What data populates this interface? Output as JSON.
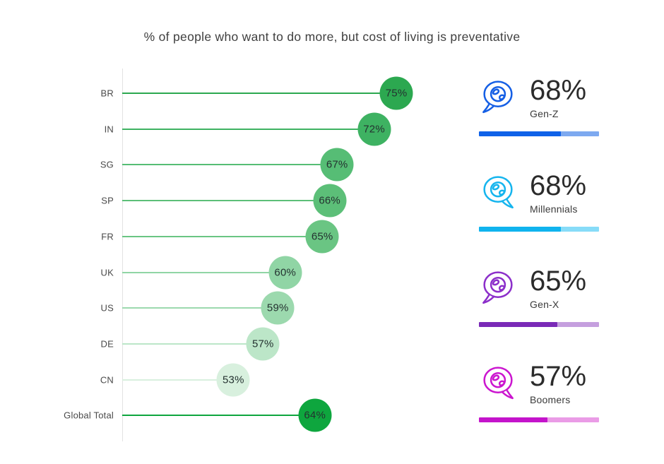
{
  "title": "% of people who want to do more, but cost of living is preventative",
  "chart_data": [
    {
      "type": "lollipop",
      "orientation": "horizontal",
      "categories": [
        "BR",
        "IN",
        "SG",
        "SP",
        "FR",
        "UK",
        "US",
        "DE",
        "CN",
        "Global Total"
      ],
      "values": [
        75,
        72,
        67,
        66,
        65,
        60,
        59,
        57,
        53,
        64
      ],
      "labels": [
        "75%",
        "72%",
        "67%",
        "66%",
        "65%",
        "60%",
        "59%",
        "57%",
        "53%",
        "64%"
      ],
      "colors": [
        "#2ca850",
        "#3eb262",
        "#56bd75",
        "#5cbf78",
        "#6ac583",
        "#90d5a5",
        "#9cd9ae",
        "#bce6c8",
        "#d8f0de",
        "#0ea63e"
      ],
      "value_text_color": "#243230",
      "label_color": "#4a4a4a",
      "axis_color": "#e2e2e2",
      "xlim": [
        38,
        79
      ],
      "grid": false
    },
    {
      "type": "bar",
      "orientation": "horizontal",
      "categories": [
        "Gen-Z",
        "Millennials",
        "Gen-X",
        "Boomers"
      ],
      "values": [
        68,
        68,
        65,
        57
      ],
      "labels": [
        "68%",
        "68%",
        "65%",
        "57%"
      ],
      "bar_colors": [
        "#0f62e8",
        "#10b3ee",
        "#7a2ab7",
        "#c414cb"
      ],
      "track_colors": [
        "#7da9f0",
        "#87dcf8",
        "#c59fde",
        "#ea9ce6"
      ],
      "icon_colors": [
        "#155fe5",
        "#16b5ee",
        "#8c2fca",
        "#cb16cf"
      ],
      "icon": "speech-bubble-globe-icon",
      "icon_tail_sides": [
        "left",
        "right",
        "left",
        "right"
      ],
      "xlim": [
        0,
        100
      ],
      "grid": false
    }
  ]
}
